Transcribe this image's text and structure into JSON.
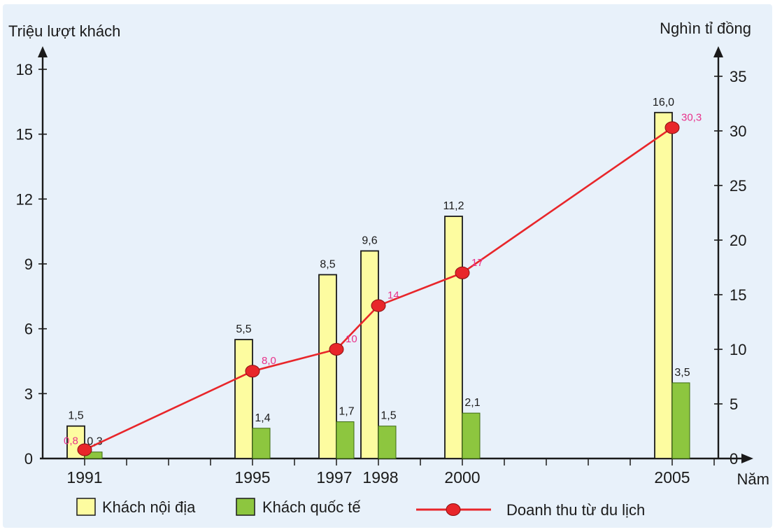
{
  "chart_data": {
    "type": "bar+line",
    "title": "",
    "categories": [
      "1991",
      "1995",
      "1997",
      "1998",
      "2000",
      "2005"
    ],
    "left_axis": {
      "label": "Triệu lượt khách",
      "ticks": [
        "0",
        "3",
        "6",
        "9",
        "12",
        "15",
        "18"
      ],
      "range": [
        0,
        18
      ]
    },
    "right_axis": {
      "label": "Nghìn tỉ đồng",
      "ticks": [
        "0",
        "5",
        "10",
        "15",
        "20",
        "25",
        "30",
        "35"
      ],
      "range": [
        0,
        35
      ]
    },
    "x_axis": {
      "label": "Năm"
    },
    "series": [
      {
        "name": "Khách nội địa",
        "type": "bar",
        "axis": "left",
        "color": "#fdfca0",
        "values": [
          1.5,
          5.5,
          8.5,
          9.6,
          11.2,
          16.0
        ],
        "labels": [
          "1,5",
          "5,5",
          "8,5",
          "9,6",
          "11,2",
          "16,0"
        ]
      },
      {
        "name": "Khách quốc tế",
        "type": "bar",
        "axis": "left",
        "color": "#8dc63f",
        "values": [
          0.3,
          1.4,
          1.7,
          1.5,
          2.1,
          3.5
        ],
        "labels": [
          "0,3",
          "1,4",
          "1,7",
          "1,5",
          "2,1",
          "3,5"
        ]
      },
      {
        "name": "Doanh thu từ du lịch",
        "type": "line",
        "axis": "right",
        "color": "#e8262a",
        "label_color": "#e8328a",
        "values": [
          0.8,
          8.0,
          10,
          14,
          17,
          30.3
        ],
        "labels": [
          "0,8",
          "8,0",
          "10",
          "14",
          "17",
          "30,3"
        ]
      }
    ]
  },
  "colors": {
    "background": "#e8f1fa",
    "axis": "#1a1a1a"
  }
}
